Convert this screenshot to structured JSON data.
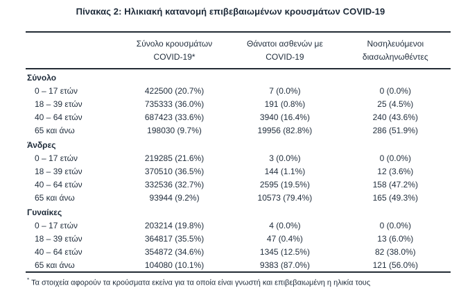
{
  "page_title": "Πίνακας 2: Ηλικιακή κατανομή επιβεβαιωμένων κρουσμάτων COVID-19",
  "colors": {
    "text": "#1f2c3b",
    "rule": "#222b34",
    "background": "#ffffff"
  },
  "table": {
    "header": {
      "cases_line1": "Σύνολο κρουσμάτων",
      "cases_line2": "COVID-19*",
      "deaths_line1": "Θάνατοι ασθενών με",
      "deaths_line2": "COVID-19",
      "intubated_line1": "Νοσηλευόμενοι",
      "intubated_line2": "διασωληνωθέντες"
    },
    "sections": [
      {
        "label": "Σύνολο",
        "rows": [
          {
            "age": "0 – 17 ετών",
            "cases": "422500 (20.7%)",
            "deaths": "7 (0.0%)",
            "intubated": "0 (0.0%)"
          },
          {
            "age": "18 – 39 ετών",
            "cases": "735333 (36.0%)",
            "deaths": "191 (0.8%)",
            "intubated": "25 (4.5%)"
          },
          {
            "age": "40 – 64 ετών",
            "cases": "687423 (33.6%)",
            "deaths": "3940 (16.4%)",
            "intubated": "240 (43.6%)"
          },
          {
            "age": "65 και άνω",
            "cases": "198030 (9.7%)",
            "deaths": "19956 (82.8%)",
            "intubated": "286 (51.9%)"
          }
        ]
      },
      {
        "label": "Άνδρες",
        "rows": [
          {
            "age": "0 – 17 ετών",
            "cases": "219285 (21.6%)",
            "deaths": "3 (0.0%)",
            "intubated": "0 (0.0%)"
          },
          {
            "age": "18 – 39 ετών",
            "cases": "370510 (36.5%)",
            "deaths": "144 (1.1%)",
            "intubated": "12 (3.6%)"
          },
          {
            "age": "40 – 64 ετών",
            "cases": "332536 (32.7%)",
            "deaths": "2595 (19.5%)",
            "intubated": "158 (47.2%)"
          },
          {
            "age": "65 και άνω",
            "cases": "93944 (9.2%)",
            "deaths": "10573 (79.4%)",
            "intubated": "165 (49.3%)"
          }
        ]
      },
      {
        "label": "Γυναίκες",
        "rows": [
          {
            "age": "0 – 17 ετών",
            "cases": "203214 (19.8%)",
            "deaths": "4 (0.0%)",
            "intubated": "0 (0.0%)"
          },
          {
            "age": "18 – 39 ετών",
            "cases": "364817 (35.5%)",
            "deaths": "47 (0.4%)",
            "intubated": "13 (6.0%)"
          },
          {
            "age": "40 – 64 ετών",
            "cases": "354872 (34.6%)",
            "deaths": "1345 (12.5%)",
            "intubated": "82 (38.0%)"
          },
          {
            "age": "65 και άνω",
            "cases": "104080 (10.1%)",
            "deaths": "9383 (87.0%)",
            "intubated": "121 (56.0%)"
          }
        ]
      }
    ],
    "footnote_marker": "*",
    "footnote_text": "Τα στοιχεία αφορούν τα κρούσματα εκείνα για τα οποία είναι γνωστή και επιβεβαιωμένη η ηλικία τους"
  }
}
